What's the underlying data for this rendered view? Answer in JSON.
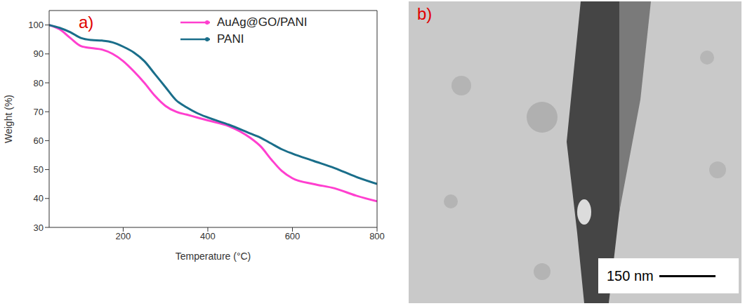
{
  "chart_data": {
    "type": "line",
    "label": "a)",
    "x_label": "Temperature (°C)",
    "y_label": "Weight (%)",
    "x": [
      25,
      50,
      75,
      100,
      125,
      150,
      175,
      200,
      225,
      250,
      275,
      300,
      325,
      350,
      375,
      400,
      450,
      500,
      525,
      550,
      575,
      600,
      650,
      700,
      750,
      800
    ],
    "series": [
      {
        "name": "AuAg@GO/PANI",
        "color": "#ff3fcf",
        "line_style": "solid",
        "values": [
          100,
          98.5,
          95.5,
          92.7,
          92,
          91.5,
          90,
          87.5,
          84,
          80,
          75.5,
          72,
          70,
          69,
          68,
          67,
          65,
          61,
          58,
          53.5,
          49.5,
          47,
          45,
          43.5,
          41,
          39
        ]
      },
      {
        "name": "PANI",
        "color": "#1a6e8a",
        "line_style": "solid",
        "values": [
          100,
          99,
          97.5,
          95.5,
          94.8,
          94.6,
          94,
          92.5,
          90.5,
          87.5,
          83,
          78.5,
          74,
          71.5,
          69.5,
          68,
          65.5,
          62.5,
          61,
          59,
          57,
          55.5,
          53,
          50.5,
          47.5,
          45
        ]
      }
    ],
    "xlim": [
      25,
      800
    ],
    "xticks": [
      200,
      400,
      600,
      800
    ],
    "ylim": [
      30,
      105
    ],
    "yticks": [
      30,
      40,
      50,
      60,
      70,
      80,
      90,
      100
    ],
    "legend": "upper right",
    "grid": false
  },
  "image": {
    "label": "b)",
    "scale_bar": "150 nm"
  }
}
